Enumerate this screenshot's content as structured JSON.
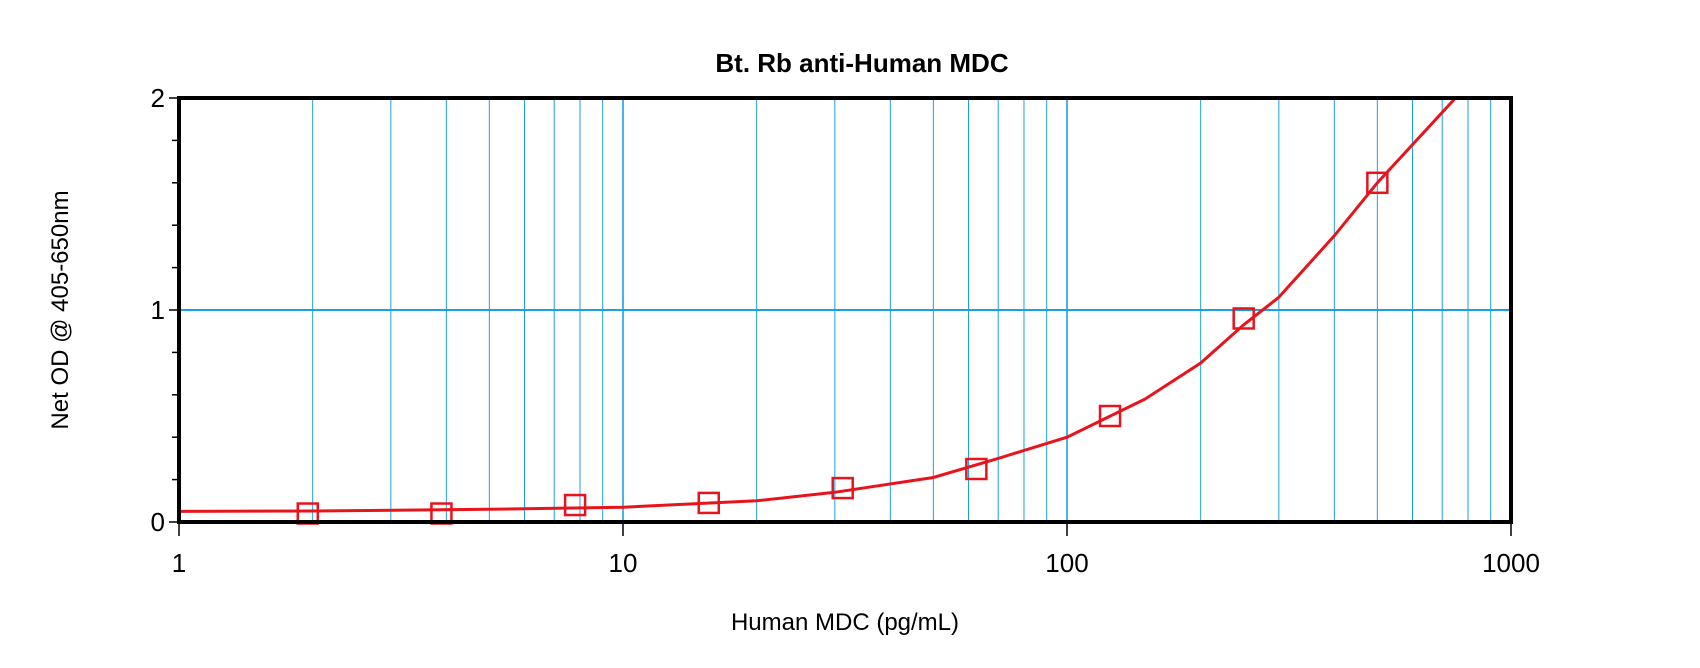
{
  "chart_data": {
    "type": "scatter",
    "title": "Bt. Rb anti-Human MDC",
    "xlabel": "Human MDC (pg/mL)",
    "ylabel": "Net OD @ 405-650nm",
    "xscale": "log",
    "xlim": [
      1,
      1000
    ],
    "ylim": [
      0,
      2
    ],
    "xticks": [
      "1",
      "10",
      "100",
      "1000"
    ],
    "yticks": [
      "0",
      "1",
      "2"
    ],
    "grid": true,
    "colors": {
      "series": "#e8141b",
      "grid": "#1ba1e2",
      "axis": "#000000"
    },
    "series": [
      {
        "marker": "open-square",
        "x": [
          1.95,
          3.9,
          7.8,
          15.6,
          31.25,
          62.5,
          125,
          250,
          500
        ],
        "y": [
          0.04,
          0.04,
          0.08,
          0.09,
          0.16,
          0.25,
          0.5,
          0.96,
          1.6
        ]
      }
    ],
    "fit_curve": {
      "x": [
        1,
        2,
        5,
        10,
        20,
        30,
        50,
        70,
        100,
        150,
        200,
        250,
        300,
        400,
        500,
        600,
        750
      ],
      "y": [
        0.05,
        0.052,
        0.06,
        0.07,
        0.1,
        0.14,
        0.21,
        0.3,
        0.4,
        0.58,
        0.75,
        0.93,
        1.06,
        1.35,
        1.6,
        1.78,
        2.0
      ]
    }
  }
}
